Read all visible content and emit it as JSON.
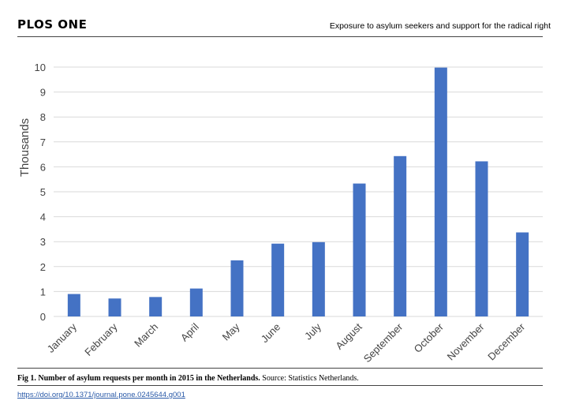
{
  "header": {
    "journal": "PLOS ONE",
    "running_title": "Exposure to asylum seekers and support for the radical right"
  },
  "caption": {
    "label": "Fig 1. Number of asylum requests per month in 2015 in the Netherlands.",
    "source": " Source: Statistics Netherlands."
  },
  "doi": "https://doi.org/10.1371/journal.pone.0245644.g001",
  "colors": {
    "bar": "#4472c4",
    "grid": "#d9d9d9"
  },
  "chart_data": {
    "type": "bar",
    "categories": [
      "January",
      "February",
      "March",
      "April",
      "May",
      "June",
      "July",
      "August",
      "September",
      "October",
      "November",
      "December"
    ],
    "values": [
      0.9,
      0.72,
      0.78,
      1.12,
      2.25,
      2.92,
      2.98,
      5.33,
      6.43,
      9.98,
      6.22,
      3.37
    ],
    "title": "",
    "xlabel": "",
    "ylabel": "Thousands",
    "ylim": [
      0,
      10
    ],
    "yticks": [
      0,
      1,
      2,
      3,
      4,
      5,
      6,
      7,
      8,
      9,
      10
    ],
    "grid": true
  }
}
